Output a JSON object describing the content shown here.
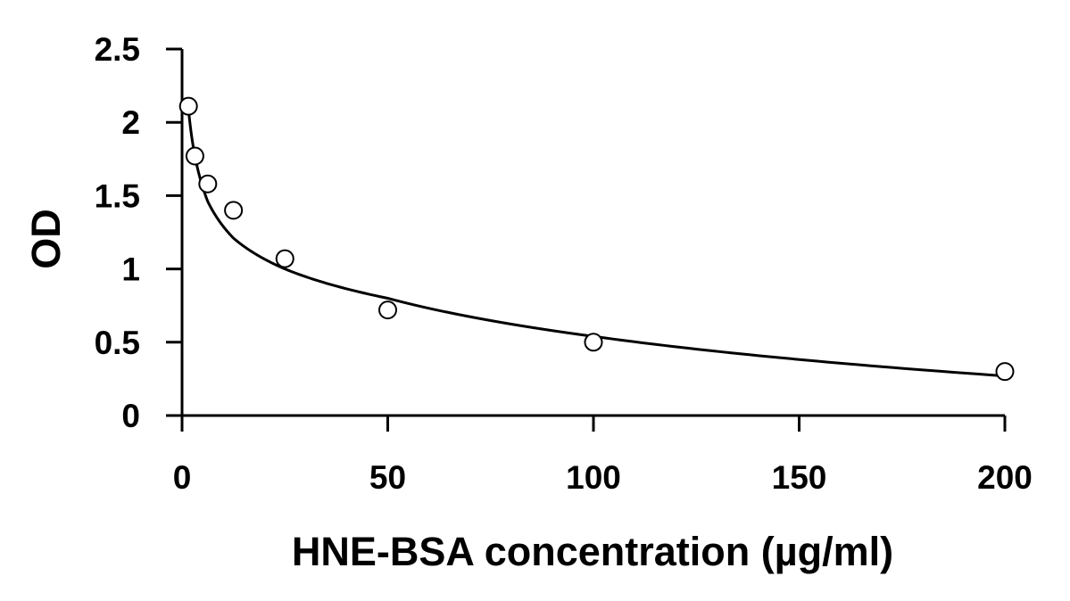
{
  "chart_data": {
    "type": "scatter",
    "title": "",
    "xlabel": "HNE-BSA concentration (µg/ml)",
    "ylabel": "OD",
    "xlim": [
      0,
      200
    ],
    "ylim": [
      0,
      2.5
    ],
    "x_ticks": [
      0,
      50,
      100,
      150,
      200
    ],
    "x_tick_labels": [
      "0",
      "50",
      "100",
      "150",
      "200"
    ],
    "y_ticks": [
      0,
      0.5,
      1,
      1.5,
      2,
      2.5
    ],
    "y_tick_labels": [
      "0",
      "0.5",
      "1",
      "1.5",
      "2",
      "2.5"
    ],
    "grid": false,
    "legend": "none",
    "series": [
      {
        "marker": "open-circle",
        "x": [
          1.5625,
          3.125,
          6.25,
          12.5,
          25,
          50,
          100,
          200
        ],
        "y": [
          2.11,
          1.77,
          1.58,
          1.4,
          1.07,
          0.72,
          0.5,
          0.3
        ]
      }
    ],
    "fit": {
      "type": "logarithmic",
      "x": [
        1.5625,
        3.125,
        6.25,
        12.5,
        25,
        50,
        100,
        200
      ],
      "y": [
        2.09,
        1.77,
        1.46,
        1.21,
        1.0,
        0.8,
        0.54,
        0.27
      ]
    },
    "colors": {
      "axis": "#000000",
      "marker_edge": "#000000",
      "marker_fill": "#ffffff",
      "curve": "#000000"
    }
  }
}
